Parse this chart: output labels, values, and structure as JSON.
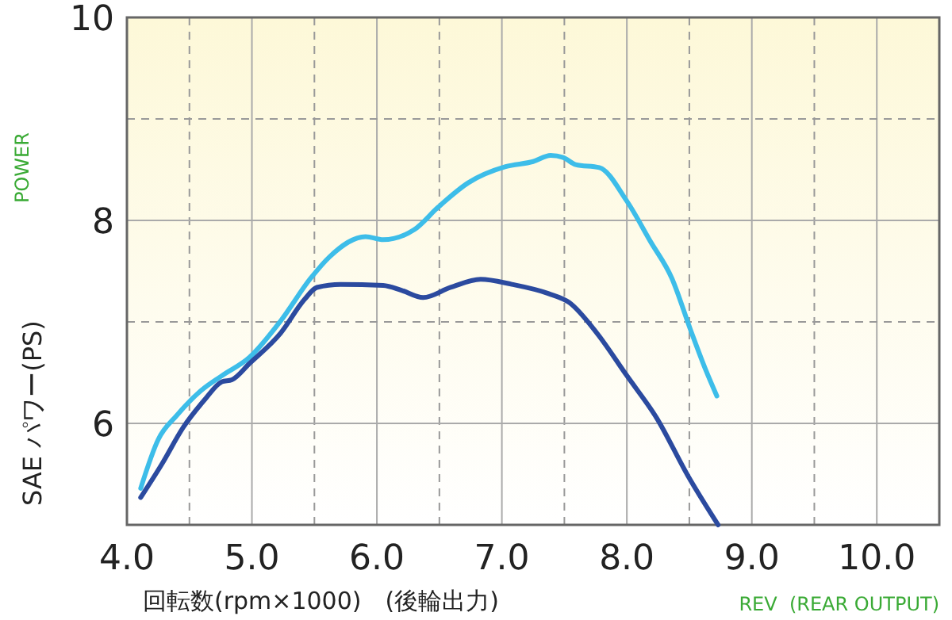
{
  "chart_data": {
    "type": "line",
    "xlabel": "回転数(rpm×1000)　(後輪出力)",
    "ylabel": "SAE パワー(PS)",
    "annotations": [
      "POWER",
      "REV  (REAR OUTPUT)"
    ],
    "xlim": [
      4,
      10.5
    ],
    "ylim": [
      5,
      10
    ],
    "xticks": [
      {
        "value": 4,
        "label": "4.0"
      },
      {
        "value": 4.5,
        "label": null
      },
      {
        "value": 5,
        "label": "5.0"
      },
      {
        "value": 5.5,
        "label": null
      },
      {
        "value": 6,
        "label": "6.0"
      },
      {
        "value": 6.5,
        "label": null
      },
      {
        "value": 7,
        "label": "7.0"
      },
      {
        "value": 7.5,
        "label": null
      },
      {
        "value": 8,
        "label": "8.0"
      },
      {
        "value": 8.5,
        "label": null
      },
      {
        "value": 9,
        "label": "9.0"
      },
      {
        "value": 9.5,
        "label": null
      },
      {
        "value": 10,
        "label": "10.0"
      }
    ],
    "yticks": [
      {
        "value": 5,
        "label": null
      },
      6,
      {
        "value": 7,
        "label": null
      },
      8,
      {
        "value": 9,
        "label": null
      },
      10
    ],
    "grid": true,
    "marker": "none",
    "line_style": "solid",
    "series": [
      {
        "color": "#3dbde9",
        "x": [
          4.11,
          4.25,
          4.4,
          4.59,
          4.76,
          4.98,
          5.23,
          5.47,
          5.62,
          5.91,
          6.05,
          6.3,
          6.49,
          6.73,
          7.03,
          7.25,
          7.39,
          7.49,
          7.59,
          7.78,
          8.0,
          8.19,
          8.36,
          8.51,
          8.63,
          8.72
        ],
        "values": [
          5.36,
          5.84,
          6.08,
          6.32,
          6.47,
          6.65,
          7.01,
          7.43,
          7.64,
          7.84,
          7.81,
          7.91,
          8.13,
          8.37,
          8.53,
          8.58,
          8.64,
          8.62,
          8.55,
          8.52,
          8.19,
          7.79,
          7.43,
          6.92,
          6.53,
          6.27
        ]
      },
      {
        "color": "#2b4a9f",
        "x": [
          4.11,
          4.28,
          4.45,
          4.62,
          4.76,
          4.84,
          4.98,
          5.23,
          5.42,
          5.52,
          5.71,
          6.05,
          6.2,
          6.37,
          6.59,
          6.83,
          7.08,
          7.37,
          7.54,
          7.76,
          8.0,
          8.24,
          8.49,
          8.73
        ],
        "values": [
          5.27,
          5.6,
          5.96,
          6.23,
          6.41,
          6.43,
          6.59,
          6.89,
          7.22,
          7.34,
          7.37,
          7.36,
          7.31,
          7.24,
          7.34,
          7.42,
          7.37,
          7.28,
          7.19,
          6.89,
          6.47,
          6.05,
          5.48,
          5.0
        ]
      }
    ]
  }
}
